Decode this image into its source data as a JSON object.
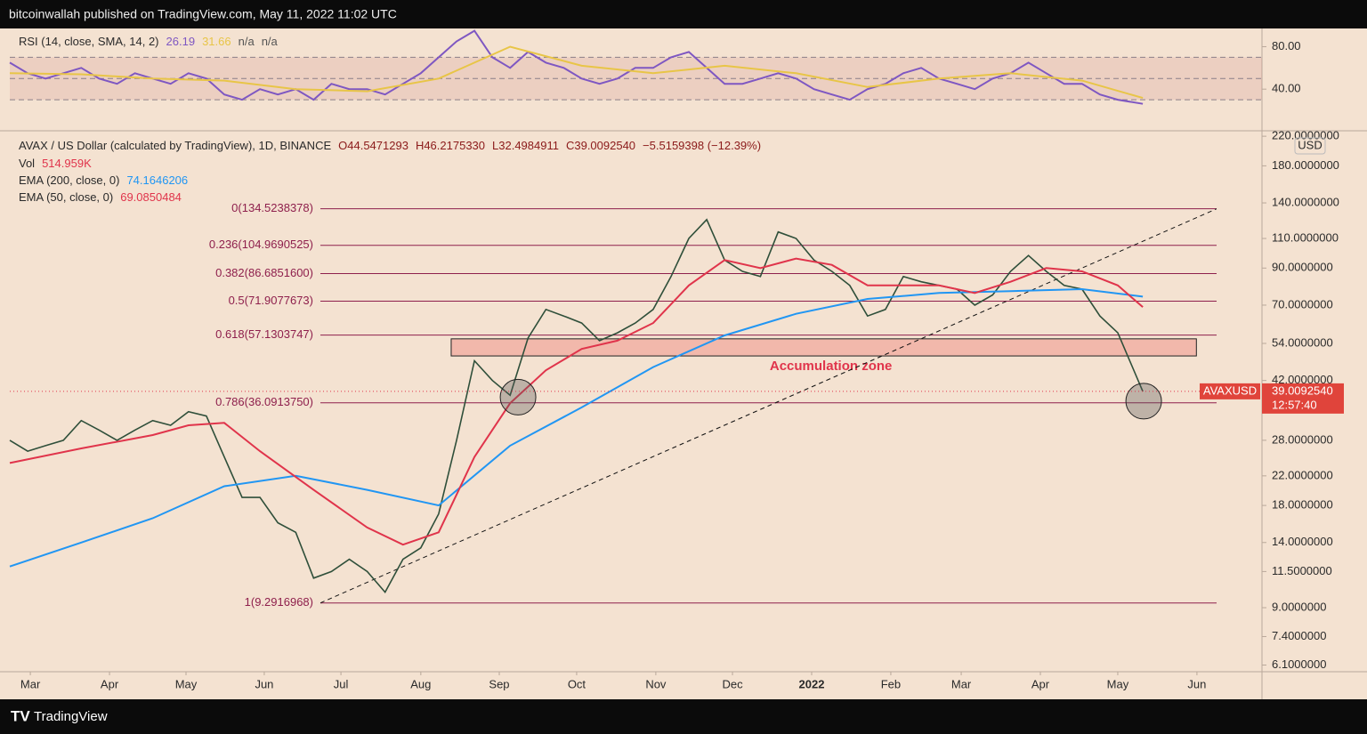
{
  "header": "bitcoinwallah published on TradingView.com, May 11, 2022 11:02 UTC",
  "footer": "TradingView",
  "chart_data": [
    {
      "type": "line",
      "title": "RSI (14, close, SMA, 14, 2)",
      "legend_values": [
        26.19,
        31.66,
        "n/a",
        "n/a"
      ],
      "ylim": [
        2.45,
        96.3
      ],
      "yticks": [
        {
          "value": 80,
          "label": "80.00"
        },
        {
          "value": 40,
          "label": "40.00"
        }
      ],
      "levels": [
        70,
        50,
        30
      ],
      "xlim": [
        0,
        70.07
      ],
      "series": [
        {
          "color": "#7e57c2",
          "x": [
            0,
            1,
            2,
            3,
            4,
            5,
            6,
            7,
            8,
            9,
            10,
            11,
            12,
            13,
            14,
            15,
            16,
            17,
            18,
            19,
            20,
            21,
            22,
            23,
            24,
            25,
            26,
            27,
            28,
            29,
            30,
            31,
            32,
            33,
            34,
            35,
            36,
            37,
            38,
            39,
            40,
            41,
            42,
            43,
            44,
            45,
            46,
            47,
            48,
            49,
            50,
            51,
            52,
            53,
            54,
            55,
            56,
            57,
            58,
            59,
            60,
            61,
            62,
            63.4
          ],
          "values": [
            65,
            55,
            50,
            55,
            60,
            50,
            45,
            55,
            50,
            45,
            55,
            50,
            35,
            30,
            40,
            35,
            40,
            30,
            45,
            40,
            40,
            35,
            45,
            55,
            70,
            85,
            95,
            70,
            60,
            75,
            65,
            60,
            50,
            45,
            50,
            60,
            60,
            70,
            75,
            60,
            45,
            45,
            50,
            55,
            50,
            40,
            35,
            30,
            40,
            45,
            55,
            60,
            50,
            45,
            40,
            50,
            55,
            65,
            55,
            45,
            45,
            35,
            30,
            26.19
          ]
        },
        {
          "color": "#e8c547",
          "x": [
            0,
            4,
            8,
            12,
            16,
            20,
            24,
            28,
            32,
            36,
            40,
            44,
            48,
            52,
            56,
            60,
            63.4
          ],
          "values": [
            55,
            54,
            50,
            48,
            40,
            38,
            50,
            80,
            62,
            55,
            62,
            55,
            42,
            50,
            55,
            48,
            31.66
          ]
        }
      ]
    },
    {
      "type": "line",
      "log_scale": true,
      "title": "AVAX / US Dollar (calculated by TradingView), 1D, BINANCE",
      "ohlc_labels": [
        "O44.5471293",
        "H46.2175330",
        "L32.4984911",
        "C39.0092540"
      ],
      "change_label": "−5.5159398 (−12.39%)",
      "volume_legend": {
        "name": "Vol",
        "label": "514.959K"
      },
      "currency": "USD",
      "ylim": [
        5.83,
        226.9
      ],
      "yticks": [
        {
          "value": 220,
          "label": "220.0000000"
        },
        {
          "value": 180,
          "label": "180.0000000"
        },
        {
          "value": 140,
          "label": "140.0000000"
        },
        {
          "value": 110,
          "label": "110.0000000"
        },
        {
          "value": 90,
          "label": "90.0000000"
        },
        {
          "value": 70,
          "label": "70.0000000"
        },
        {
          "value": 54,
          "label": "54.0000000"
        },
        {
          "value": 42,
          "label": "42.0000000"
        },
        {
          "value": 28,
          "label": "28.0000000"
        },
        {
          "value": 22,
          "label": "22.0000000"
        },
        {
          "value": 18,
          "label": "18.0000000"
        },
        {
          "value": 14,
          "label": "14.0000000"
        },
        {
          "value": 11.5,
          "label": "11.5000000"
        },
        {
          "value": 9,
          "label": "9.0000000"
        },
        {
          "value": 7.4,
          "label": "7.4000000"
        },
        {
          "value": 6.1,
          "label": "6.1000000"
        }
      ],
      "xlim": [
        0,
        70.07
      ],
      "xticks": [
        {
          "value": 1.15,
          "label": "Mar"
        },
        {
          "value": 5.58,
          "label": "Apr"
        },
        {
          "value": 9.86,
          "label": "May"
        },
        {
          "value": 14.24,
          "label": "Jun"
        },
        {
          "value": 18.53,
          "label": "Jul"
        },
        {
          "value": 23.0,
          "label": "Aug"
        },
        {
          "value": 27.39,
          "label": "Sep"
        },
        {
          "value": 31.72,
          "label": "Oct"
        },
        {
          "value": 36.15,
          "label": "Nov"
        },
        {
          "value": 40.44,
          "label": "Dec"
        },
        {
          "value": 44.87,
          "label": "2022"
        },
        {
          "value": 49.3,
          "label": "Feb"
        },
        {
          "value": 53.24,
          "label": "Mar"
        },
        {
          "value": 57.67,
          "label": "Apr"
        },
        {
          "value": 62.0,
          "label": "May"
        },
        {
          "value": 66.43,
          "label": "Jun"
        }
      ],
      "series": [
        {
          "color": "#2f4f3a",
          "x": [
            0,
            1,
            2,
            3,
            4,
            5,
            6,
            7,
            8,
            9,
            10,
            11,
            12,
            13,
            14,
            15,
            16,
            17,
            18,
            19,
            20,
            21,
            22,
            23,
            24,
            25,
            26,
            27,
            28,
            29,
            30,
            31,
            32,
            33,
            34,
            35,
            36,
            37,
            38,
            39,
            40,
            41,
            42,
            43,
            44,
            45,
            46,
            47,
            48,
            49,
            50,
            51,
            52,
            53,
            54,
            55,
            56,
            57,
            58,
            59,
            60,
            61,
            62,
            63.4
          ],
          "values": [
            28,
            26,
            27,
            28,
            32,
            30,
            28,
            30,
            32,
            31,
            34,
            33,
            25,
            19,
            19,
            16,
            15,
            11,
            11.5,
            12.5,
            11.5,
            10,
            12.5,
            13.5,
            17,
            28,
            48,
            42,
            38,
            56,
            68,
            65,
            62,
            55,
            58,
            62,
            68,
            85,
            110,
            125,
            95,
            88,
            85,
            115,
            110,
            95,
            88,
            80,
            65,
            68,
            85,
            82,
            80,
            78,
            70,
            75,
            88,
            98,
            88,
            80,
            78,
            65,
            58,
            39.009254
          ]
        },
        {
          "name": "EMA (200, close, 0)",
          "value_label": "74.1646206",
          "color": "#2196f3",
          "x": [
            0,
            4,
            8,
            12,
            16,
            20,
            24,
            28,
            32,
            36,
            40,
            44,
            48,
            52,
            56,
            60,
            63.4
          ],
          "values": [
            11.9,
            14,
            16.5,
            20.5,
            22,
            20,
            18,
            27,
            35,
            46,
            57,
            66,
            73,
            76,
            77,
            78,
            74.1646206
          ]
        },
        {
          "name": "EMA (50, close, 0)",
          "value_label": "69.0850484",
          "color": "#e0344b",
          "x": [
            0,
            4,
            8,
            10,
            12,
            14,
            17,
            20,
            22,
            24,
            26,
            28,
            30,
            32,
            34,
            36,
            38,
            40,
            42,
            44,
            46,
            48,
            50,
            52,
            54,
            56,
            58,
            60,
            62,
            63.4
          ],
          "values": [
            24,
            26.5,
            29,
            31,
            31.5,
            26,
            20,
            15.5,
            13.8,
            15,
            25,
            36,
            45,
            52,
            55,
            62,
            80,
            95,
            90,
            96,
            92,
            80,
            80,
            80,
            76,
            82,
            90,
            88,
            80,
            69.0850484
          ]
        }
      ],
      "fib_color": "#8e1f4c",
      "fib_xlim": [
        17.38,
        67.53
      ],
      "fib_levels": [
        {
          "label": "0(134.5238378)",
          "value": 134.5238378
        },
        {
          "label": "0.236(104.9690525)",
          "value": 104.9690525
        },
        {
          "label": "0.382(86.6851600)",
          "value": 86.68516
        },
        {
          "label": "0.5(71.9077673)",
          "value": 71.9077673
        },
        {
          "label": "0.618(57.1303747)",
          "value": 57.1303747
        },
        {
          "label": "0.786(36.0913750)",
          "value": 36.091375
        },
        {
          "label": "1(9.2916968)",
          "value": 9.2916968
        }
      ],
      "zone": {
        "label": "Accumulation zone",
        "xlim": [
          24.7,
          66.4
        ],
        "ylim": [
          49.6,
          55.7
        ]
      },
      "trendline": {
        "x": [
          17.38,
          67.53
        ],
        "values": [
          9.2917,
          134.5238
        ]
      },
      "highlights": {
        "x": [
          28.44,
          63.45
        ],
        "values": [
          37.5,
          36.5
        ]
      },
      "last_price": {
        "symbol": "AVAXUSD",
        "value": 39.009254,
        "label": "39.0092540",
        "countdown": "12:57:40"
      }
    }
  ]
}
